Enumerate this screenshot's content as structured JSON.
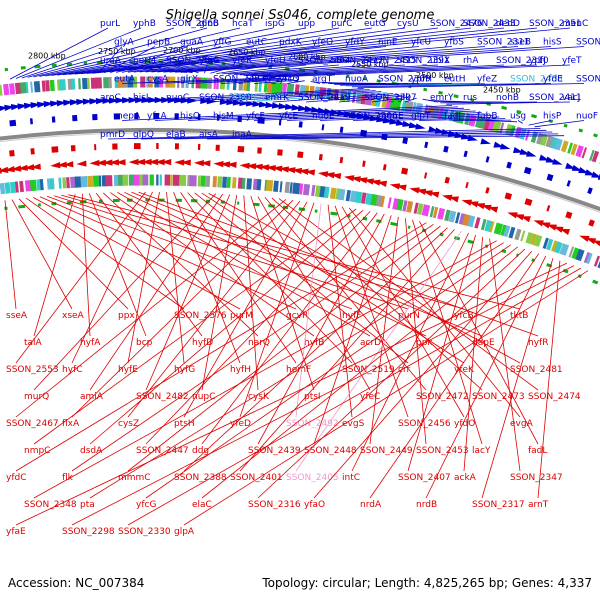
{
  "title": "Shigella sonnei Ss046, complete genome",
  "footer": {
    "accession": "Accession: NC_007384",
    "topology": "Topology: circular; Length: 4,825,265 bp; Genes: 4,337"
  },
  "colors": {
    "forward": "#0000cc",
    "reverse": "#dd0000",
    "highlight_forward": "#33bbdd",
    "highlight_reverse": "#ee99cc",
    "backbone": "#888888"
  },
  "scale_ticks": [
    "2800 kbp",
    "2750 kbp",
    "2700 kbp",
    "2650 kbp",
    "2600 kbp",
    "2550 kbp",
    "2500 kbp",
    "2450 kbp"
  ],
  "forward_genes": [
    "purL",
    "yphB",
    "SSON_2666",
    "glnB",
    "hcaT",
    "ispG",
    "upp",
    "purC",
    "eutG",
    "cysU",
    "SSON_2476",
    "SSON_2433",
    "dedD",
    "SSON_2351",
    "menC",
    "glyA",
    "pepB",
    "guaA",
    "yffG",
    "eutC",
    "pdxK",
    "yfeO",
    "yfdY",
    "ninE",
    "yfcU",
    "yfbS",
    "SSON_2311",
    "sseB",
    "hisS",
    "SSON_2578",
    "uraA",
    "perM",
    "SSON_2556",
    "yfeG",
    "yfeR",
    "yfeU",
    "SSON_2464",
    "SSON_2417",
    "SSON_2415",
    "SSON_2391",
    "ubiX",
    "rhA",
    "SSON_2310",
    "ypfJ",
    "yfeT",
    "eutA",
    "cysA",
    "glrX",
    "SSON_2463",
    "SSON_2413",
    "yfcQ",
    "argT",
    "nuoA",
    "SSON_2309",
    "ypfH",
    "eutH",
    "yfeZ",
    "SSON_2488",
    "yfdE",
    "SSON_2412",
    "aroC",
    "hisJ",
    "nuoC",
    "SSON_2308",
    "SSON_2487",
    "emrK",
    "SSON_2419",
    "nuoI",
    "SSON_2307",
    "glk",
    "emrY",
    "rus",
    "nohB",
    "SSON_2411",
    "vacJ",
    "mepA",
    "yfcA",
    "hisQ",
    "hisM",
    "yfcF",
    "yfcE",
    "nuoE",
    "SSON_2306",
    "menE",
    "glpT",
    "fadJ",
    "fabB",
    "usg",
    "hisP",
    "nuoF",
    "pmrD",
    "glpQ",
    "elaB",
    "aisA",
    "inaA"
  ],
  "reverse_genes": [
    "sseA",
    "xseA",
    "ppx",
    "SSON_2576",
    "purM",
    "gcvR",
    "hyfF",
    "purN",
    "yfcB",
    "tktB",
    "talA",
    "hyfA",
    "bcp",
    "hyfD",
    "narQ",
    "hyfB",
    "acrD",
    "ppk",
    "dapE",
    "hyfR",
    "SSON_2553",
    "hyfC",
    "hyfE",
    "hyfG",
    "hyfH",
    "hemF",
    "SSON_2519",
    "crr",
    "yfeK",
    "SSON_2481",
    "murQ",
    "amiA",
    "SSON_2482",
    "nupC",
    "cysK",
    "ptsI",
    "yfeC",
    "SSON_2472",
    "SSON_2473",
    "SSON_2474",
    "SSON_2467",
    "flxA",
    "cysZ",
    "ptsH",
    "yfeD",
    "SSON_2492",
    "evgS",
    "SSON_2456",
    "yfdO",
    "evgA",
    "nmpC",
    "dsdA",
    "SSON_2447",
    "ddg",
    "SSON_2439",
    "SSON_2448",
    "SSON_2449",
    "SSON_2453",
    "lacY",
    "fadL",
    "yfdC",
    "flk",
    "mmmC",
    "SSON_2388",
    "SSON_2401",
    "SSON_2405",
    "intC",
    "SSON_2407",
    "ackA",
    "SSON_2347",
    "SSON_2348",
    "pta",
    "yfcG",
    "elaC",
    "SSON_2316",
    "yfaO",
    "nrdA",
    "nrdB",
    "SSON_2317",
    "arnT",
    "yfaE",
    "SSON_2298",
    "SSON_2330",
    "glpA"
  ]
}
